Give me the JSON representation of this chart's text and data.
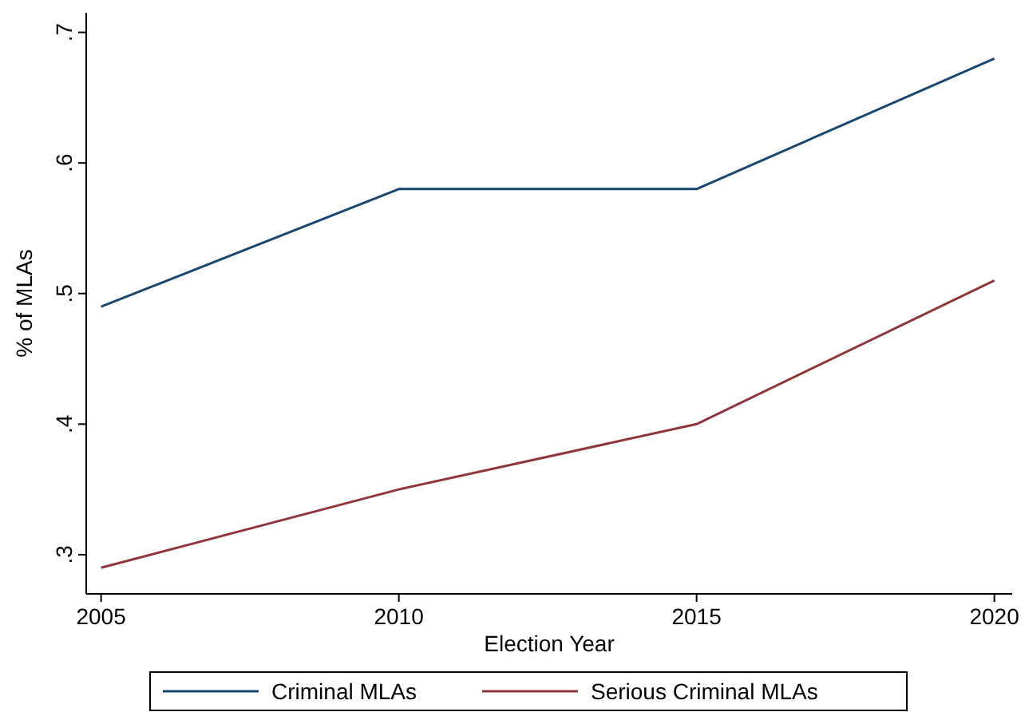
{
  "chart_data": {
    "type": "line",
    "xlabel": "Election Year",
    "ylabel": "% of MLAs",
    "x": [
      2005,
      2010,
      2015,
      2020
    ],
    "series": [
      {
        "name": "Criminal MLAs",
        "color": "#1a476f",
        "values": [
          0.49,
          0.58,
          0.58,
          0.68
        ]
      },
      {
        "name": "Serious Criminal MLAs",
        "color": "#90353b",
        "values": [
          0.29,
          0.35,
          0.4,
          0.51
        ]
      }
    ],
    "xlim": [
      2004.75,
      2020.3
    ],
    "xticks": [
      2005,
      2010,
      2015,
      2020
    ],
    "ylim": [
      0.27,
      0.715
    ],
    "yticks": [
      {
        "value": 0.3,
        "label": ".3"
      },
      {
        "value": 0.4,
        "label": ".4"
      },
      {
        "value": 0.5,
        "label": ".5"
      },
      {
        "value": 0.6,
        "label": ".6"
      },
      {
        "value": 0.7,
        "label": ".7"
      }
    ],
    "grid": false,
    "legend": "bottom",
    "marker": "none",
    "line_style": "solid"
  }
}
